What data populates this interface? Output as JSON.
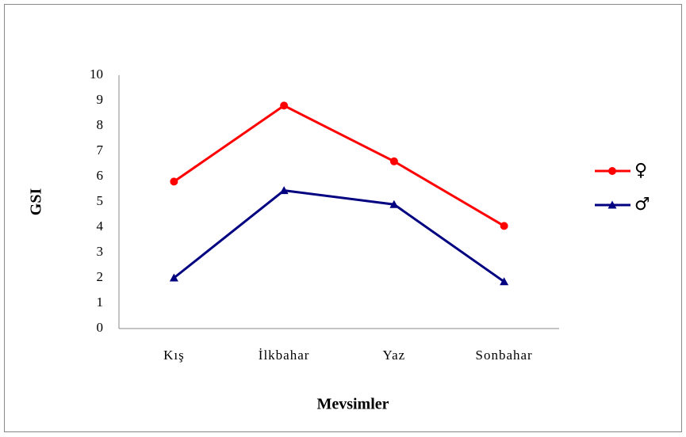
{
  "chart_data": {
    "type": "line",
    "categories": [
      "Kış",
      "İlkbahar",
      "Yaz",
      "Sonbahar"
    ],
    "series": [
      {
        "name": "♀",
        "color": "#ff0000",
        "marker": "circle",
        "values": [
          5.8,
          8.8,
          6.6,
          4.05
        ]
      },
      {
        "name": "♂",
        "color": "#000080",
        "marker": "triangle",
        "values": [
          2.0,
          5.45,
          4.9,
          1.85
        ]
      }
    ],
    "xlabel": "Mevsimler",
    "ylabel": "GSI",
    "ylim": [
      0,
      10
    ],
    "yticks": [
      0,
      1,
      2,
      3,
      4,
      5,
      6,
      7,
      8,
      9,
      10
    ],
    "grid": false,
    "legend": "right"
  }
}
